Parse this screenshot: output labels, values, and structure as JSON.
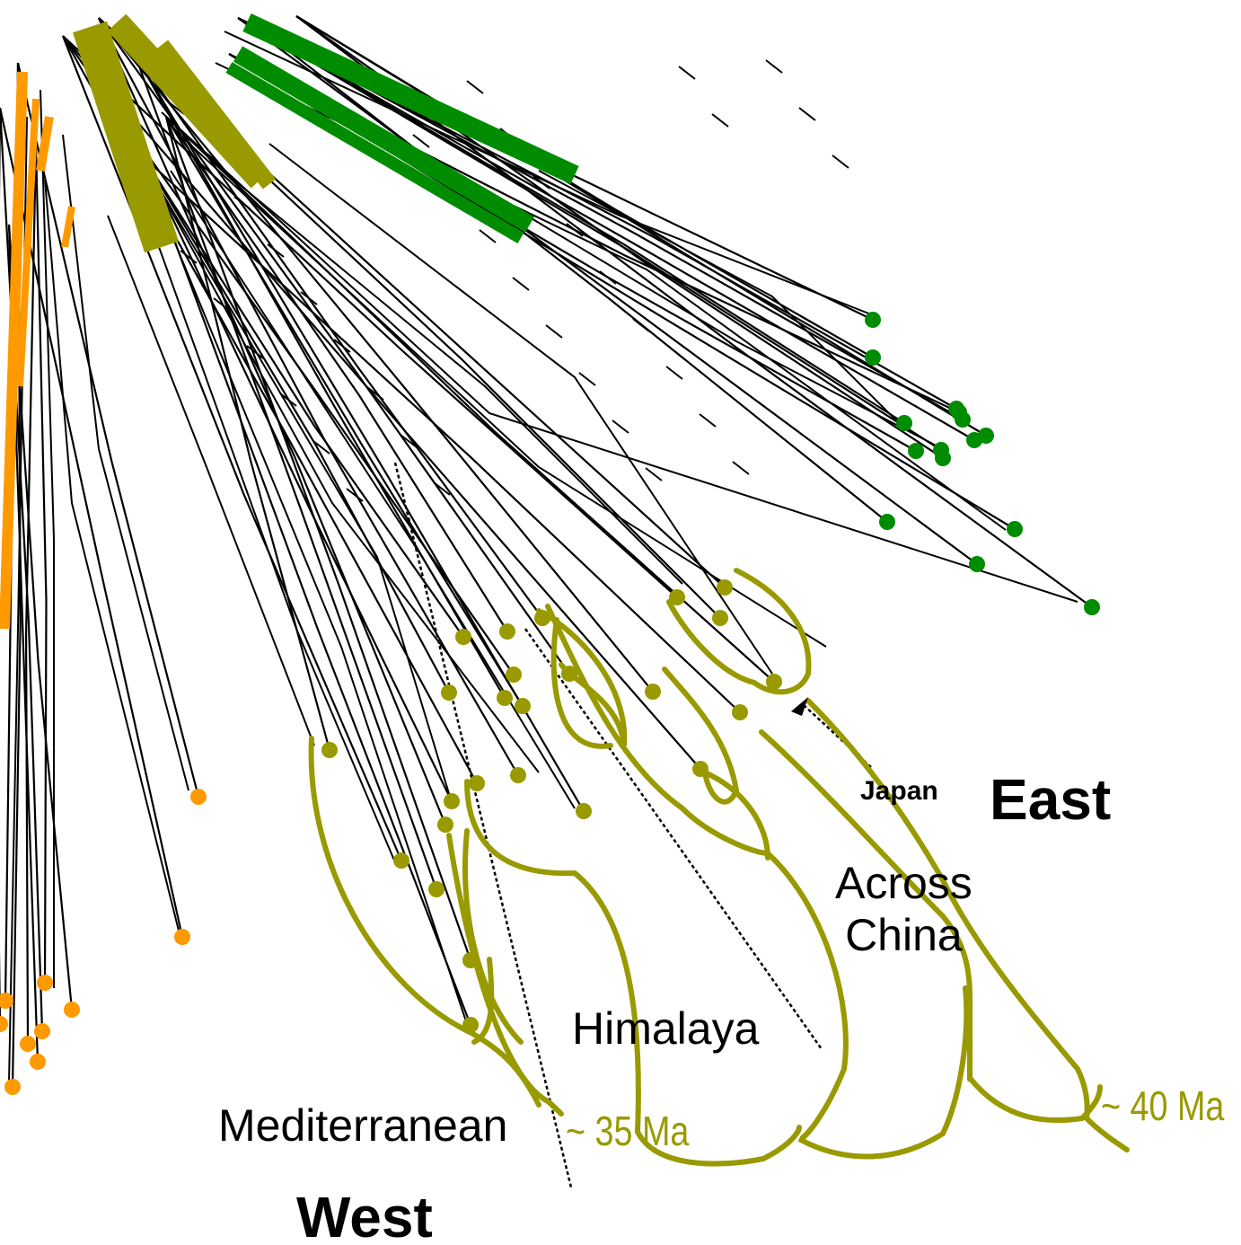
{
  "labels": {
    "east": "East",
    "west": "West",
    "japan": "Japan",
    "across_china": "Across\nChina",
    "himalaya": "Himalaya",
    "mediterranean": "Mediterranean",
    "age_35": "~ 35 Ma",
    "age_40": "~ 40 Ma"
  },
  "colors": {
    "branch": "#000000",
    "clade_green": "#008c00",
    "clade_olive": "#999900",
    "clade_orange": "#ff9900",
    "background": "#ffffff"
  },
  "clades": [
    {
      "name": "green-clade",
      "color": "clade_green",
      "tip_count": 15
    },
    {
      "name": "olive-clade",
      "color": "clade_olive",
      "tip_count": 25
    },
    {
      "name": "orange-clade",
      "color": "clade_orange",
      "tip_count": 12
    }
  ]
}
